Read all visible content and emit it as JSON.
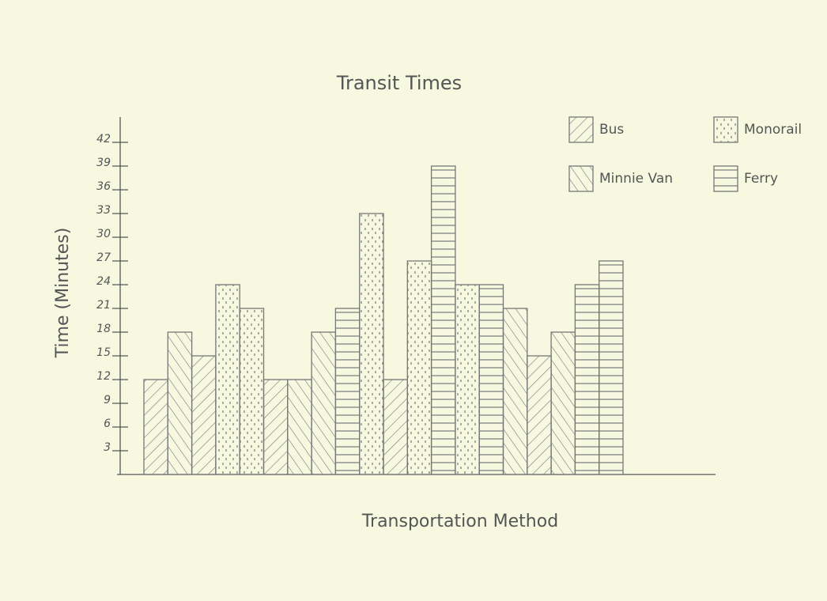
{
  "chart_data": {
    "type": "bar",
    "title": "Transit Times",
    "x_label": "Transportation Method",
    "y_label": "Time (Minutes)",
    "categories": [
      null,
      null,
      null,
      null,
      null,
      null,
      null,
      null,
      null,
      null,
      null,
      null,
      null,
      null,
      null,
      null,
      null,
      null,
      null,
      null
    ],
    "series": [
      {
        "name": "Bus",
        "color": "#777",
        "pattern": "diagonal-up",
        "values": [
          12,
          null,
          15,
          null,
          null,
          12,
          null,
          null,
          null,
          null,
          12,
          null,
          null,
          null,
          null,
          null,
          15,
          null,
          null,
          null
        ]
      },
      {
        "name": "Minnie Van",
        "color": "#777",
        "pattern": "diagonal-down",
        "values": [
          null,
          18,
          null,
          null,
          null,
          null,
          12,
          18,
          null,
          null,
          null,
          null,
          null,
          null,
          null,
          21,
          null,
          18,
          null,
          null
        ]
      },
      {
        "name": "Monorail",
        "color": "#777",
        "pattern": "dots",
        "values": [
          null,
          null,
          null,
          24,
          21,
          null,
          null,
          null,
          null,
          33,
          null,
          27,
          null,
          24,
          null,
          null,
          null,
          null,
          null,
          null
        ]
      },
      {
        "name": "Ferry",
        "color": "#777",
        "pattern": "horizontal",
        "values": [
          null,
          null,
          null,
          null,
          null,
          null,
          null,
          null,
          21,
          null,
          null,
          null,
          39,
          null,
          24,
          null,
          null,
          null,
          24,
          27
        ]
      }
    ],
    "ylim": [
      0,
      45
    ],
    "yticks": [
      3,
      6,
      9,
      12,
      15,
      18,
      21,
      24,
      27,
      30,
      33,
      36,
      39,
      42
    ],
    "grid": false
  }
}
